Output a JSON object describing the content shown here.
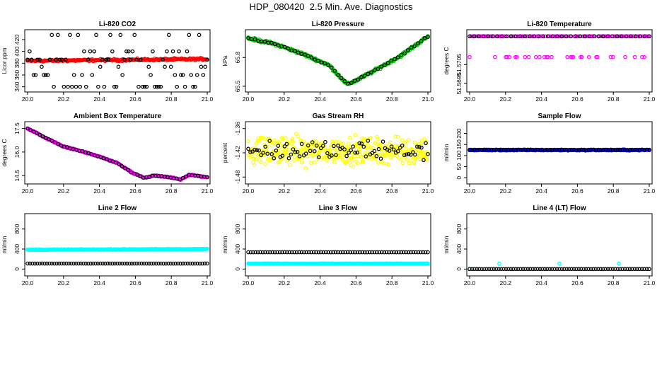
{
  "figure_title": "HDP_080420  2.5 Min. Ave. Diagnostics",
  "chart_data": [
    {
      "type": "scatter",
      "title": "Li-820 CO2",
      "ylabel": "Licor ppm",
      "xlim": [
        20.0,
        21.0
      ],
      "ylim": [
        336,
        432
      ],
      "xticks": [
        "20.0",
        "20.2",
        "20.4",
        "20.6",
        "20.8",
        "21.0"
      ],
      "yticks": [
        {
          "v": 340,
          "label": "340"
        },
        {
          "v": 360,
          "label": "360"
        },
        {
          "v": 380,
          "label": "380"
        },
        {
          "v": 400,
          "label": "400"
        },
        {
          "v": 420,
          "label": "420"
        }
      ],
      "series": [
        {
          "color": "#ff0000",
          "pattern": "band",
          "level": 384,
          "spread": 1.5,
          "trend": 3,
          "n": 240
        },
        {
          "color": "#000000",
          "pattern": "levels",
          "levels": [
            340,
            360,
            374,
            386,
            400,
            428
          ],
          "n": 90
        }
      ]
    },
    {
      "type": "scatter",
      "title": "Li-820 Pressure",
      "ylabel": "kPa",
      "xlim": [
        20.0,
        21.0
      ],
      "ylim": [
        65.47,
        66.06
      ],
      "xticks": [
        "20.0",
        "20.2",
        "20.4",
        "20.6",
        "20.8",
        "21.0"
      ],
      "yticks": [
        {
          "v": 65.5,
          "label": "65.5"
        },
        {
          "v": 65.8,
          "label": "65.8"
        }
      ],
      "series": [
        {
          "color": "#00cc00",
          "pattern": "curve",
          "knots": [
            [
              20.0,
              66.0
            ],
            [
              20.1,
              65.96
            ],
            [
              20.15,
              65.94
            ],
            [
              20.3,
              65.84
            ],
            [
              20.45,
              65.72
            ],
            [
              20.55,
              65.52
            ],
            [
              20.6,
              65.56
            ],
            [
              20.7,
              65.66
            ],
            [
              20.85,
              65.82
            ],
            [
              21.0,
              66.02
            ]
          ],
          "noise": 0.012,
          "n": 300
        },
        {
          "color": "#000000",
          "pattern": "curve",
          "knots": [
            [
              20.0,
              66.0
            ],
            [
              20.1,
              65.96
            ],
            [
              20.15,
              65.94
            ],
            [
              20.3,
              65.84
            ],
            [
              20.45,
              65.72
            ],
            [
              20.55,
              65.52
            ],
            [
              20.6,
              65.56
            ],
            [
              20.7,
              65.66
            ],
            [
              20.85,
              65.82
            ],
            [
              21.0,
              66.02
            ]
          ],
          "noise": 0.006,
          "n": 55
        }
      ]
    },
    {
      "type": "scatter",
      "title": "Li-820 Temperature",
      "ylabel": "degrees C",
      "xlim": [
        20.0,
        21.0
      ],
      "ylim": [
        51.5692,
        51.5722
      ],
      "xticks": [
        "20.0",
        "20.2",
        "20.4",
        "20.6",
        "20.8",
        "21.0"
      ],
      "yticks": [
        {
          "v": 51.5695,
          "label": "51.5695"
        },
        {
          "v": 51.5705,
          "label": "51.5705"
        }
      ],
      "series": [
        {
          "color": "#ff00ff",
          "pattern": "levels",
          "levels": [
            51.572,
            51.572,
            51.572,
            51.5709
          ],
          "n": 150
        },
        {
          "color": "#000000",
          "pattern": "levels",
          "levels": [
            51.572
          ],
          "n": 40
        }
      ]
    },
    {
      "type": "scatter",
      "title": "Ambient Box Temperature",
      "ylabel": "degrees C",
      "xlim": [
        20.0,
        21.0
      ],
      "ylim": [
        14.15,
        17.75
      ],
      "xticks": [
        "20.0",
        "20.2",
        "20.4",
        "20.6",
        "20.8",
        "21.0"
      ],
      "yticks": [
        {
          "v": 14.5,
          "label": "14.5"
        },
        {
          "v": 16.0,
          "label": "16.0"
        },
        {
          "v": 17.5,
          "label": "17.5"
        }
      ],
      "series": [
        {
          "color": "#ff00ff",
          "pattern": "curve",
          "knots": [
            [
              20.0,
              17.5
            ],
            [
              20.1,
              16.9
            ],
            [
              20.2,
              16.35
            ],
            [
              20.3,
              16.05
            ],
            [
              20.4,
              15.7
            ],
            [
              20.5,
              15.3
            ],
            [
              20.58,
              14.7
            ],
            [
              20.65,
              14.35
            ],
            [
              20.7,
              14.5
            ],
            [
              20.8,
              14.38
            ],
            [
              20.85,
              14.25
            ],
            [
              20.9,
              14.55
            ],
            [
              21.0,
              14.4
            ]
          ],
          "noise": 0.03,
          "n": 300
        },
        {
          "color": "#000000",
          "pattern": "curve",
          "knots": [
            [
              20.0,
              17.5
            ],
            [
              20.1,
              16.9
            ],
            [
              20.2,
              16.35
            ],
            [
              20.3,
              16.05
            ],
            [
              20.4,
              15.7
            ],
            [
              20.5,
              15.3
            ],
            [
              20.58,
              14.7
            ],
            [
              20.65,
              14.35
            ],
            [
              20.7,
              14.5
            ],
            [
              20.8,
              14.38
            ],
            [
              20.85,
              14.25
            ],
            [
              20.9,
              14.55
            ],
            [
              21.0,
              14.4
            ]
          ],
          "noise": 0.02,
          "n": 60
        }
      ]
    },
    {
      "type": "scatter",
      "title": "Gas Stream RH",
      "ylabel": "percent",
      "xlim": [
        20.0,
        21.0
      ],
      "ylim": [
        -1.49,
        -1.35
      ],
      "xticks": [
        "20.0",
        "20.2",
        "20.4",
        "20.6",
        "20.8",
        "21.0"
      ],
      "yticks": [
        {
          "v": -1.36,
          "label": "-1.36"
        },
        {
          "v": -1.42,
          "label": "-1.42"
        },
        {
          "v": -1.48,
          "label": "-1.48"
        }
      ],
      "series": [
        {
          "color": "#ffff00",
          "pattern": "cloud",
          "center": -1.415,
          "spread": 0.028,
          "n": 420
        },
        {
          "color": "#000000",
          "pattern": "cloud",
          "center": -1.415,
          "spread": 0.02,
          "n": 85
        }
      ]
    },
    {
      "type": "scatter",
      "title": "Sample Flow",
      "ylabel": "ml/min",
      "xlim": [
        20.0,
        21.0
      ],
      "ylim": [
        -15,
        240
      ],
      "xticks": [
        "20.0",
        "20.2",
        "20.4",
        "20.6",
        "20.8",
        "21.0"
      ],
      "yticks": [
        {
          "v": 0,
          "label": "0"
        },
        {
          "v": 50,
          "label": "50"
        },
        {
          "v": 100,
          "label": "100"
        },
        {
          "v": 150,
          "label": "150"
        },
        {
          "v": 200,
          "label": "200"
        }
      ],
      "series": [
        {
          "color": "#0000ff",
          "pattern": "band",
          "level": 125,
          "spread": 2,
          "trend": 0,
          "n": 240
        },
        {
          "color": "#000000",
          "pattern": "band",
          "level": 126,
          "spread": 1,
          "trend": 0,
          "n": 75
        }
      ]
    },
    {
      "type": "scatter",
      "title": "Line 2 Flow",
      "ylabel": "ml/min",
      "xlim": [
        20.0,
        21.0
      ],
      "ylim": [
        -80,
        1050
      ],
      "xticks": [
        "20.0",
        "20.2",
        "20.4",
        "20.6",
        "20.8",
        "21.0"
      ],
      "yticks": [
        {
          "v": 0,
          "label": "0"
        },
        {
          "v": 400,
          "label": "400"
        },
        {
          "v": 800,
          "label": "800"
        }
      ],
      "series": [
        {
          "color": "#00ffff",
          "pattern": "band",
          "level": 385,
          "spread": 6,
          "trend": 15,
          "n": 260
        },
        {
          "color": "#000000",
          "pattern": "band",
          "level": 110,
          "spread": 1,
          "trend": 0,
          "n": 75
        }
      ]
    },
    {
      "type": "scatter",
      "title": "Line 3 Flow",
      "ylabel": "ml/min",
      "xlim": [
        20.0,
        21.0
      ],
      "ylim": [
        -80,
        1050
      ],
      "xticks": [
        "20.0",
        "20.2",
        "20.4",
        "20.6",
        "20.8",
        "21.0"
      ],
      "yticks": [
        {
          "v": 0,
          "label": "0"
        },
        {
          "v": 400,
          "label": "400"
        },
        {
          "v": 800,
          "label": "800"
        }
      ],
      "series": [
        {
          "color": "#00ffff",
          "pattern": "band",
          "level": 110,
          "spread": 2,
          "trend": 0,
          "n": 260
        },
        {
          "color": "#000000",
          "pattern": "band",
          "level": 335,
          "spread": 1,
          "trend": 0,
          "n": 75
        }
      ]
    },
    {
      "type": "scatter",
      "title": "Line 4 (LT) Flow",
      "ylabel": "ml/min",
      "xlim": [
        20.0,
        21.0
      ],
      "ylim": [
        -80,
        1050
      ],
      "xticks": [
        "20.0",
        "20.2",
        "20.4",
        "20.6",
        "20.8",
        "21.0"
      ],
      "yticks": [
        {
          "v": 0,
          "label": "0"
        },
        {
          "v": 400,
          "label": "400"
        },
        {
          "v": 800,
          "label": "800"
        }
      ],
      "series": [
        {
          "color": "#00ffff",
          "pattern": "sparse",
          "points": [
            [
              20.0,
              0
            ],
            [
              20.165,
              110
            ],
            [
              20.5,
              110
            ],
            [
              20.83,
              110
            ]
          ],
          "n": 4
        },
        {
          "color": "#000000",
          "pattern": "band",
          "level": 0,
          "spread": 0.5,
          "trend": 0,
          "n": 75
        }
      ]
    }
  ]
}
